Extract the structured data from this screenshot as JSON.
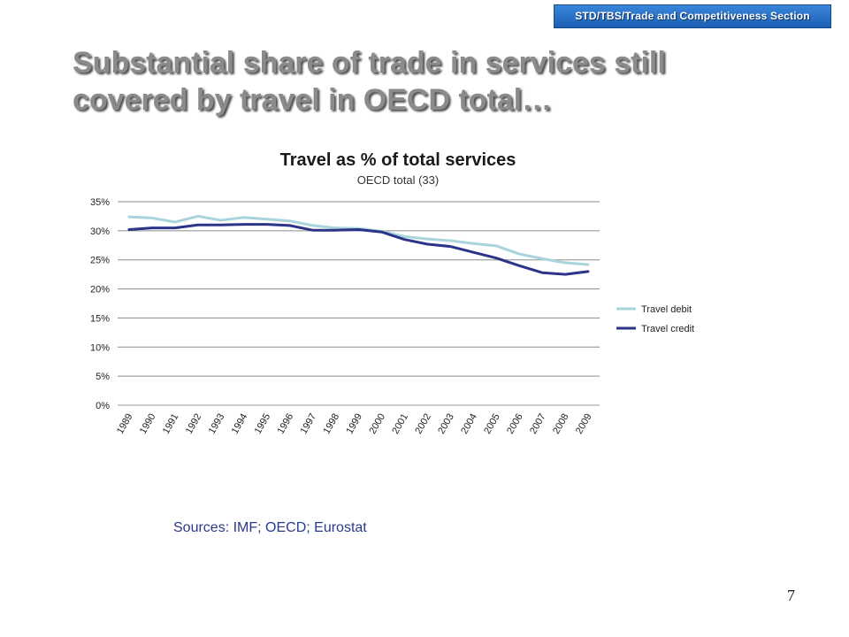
{
  "header": {
    "section_badge": "STD/TBS/Trade and Competitiveness Section"
  },
  "slide": {
    "title": "Substantial share of trade in services still covered by travel in OECD total…",
    "sources": "Sources: IMF; OECD; Eurostat",
    "page_number": "7"
  },
  "chart_data": {
    "type": "line",
    "title": "Travel as % of total services",
    "subtitle": "OECD total (33)",
    "xlabel": "",
    "ylabel": "",
    "x": [
      "1989",
      "1990",
      "1991",
      "1992",
      "1993",
      "1994",
      "1995",
      "1996",
      "1997",
      "1998",
      "1999",
      "2000",
      "2001",
      "2002",
      "2003",
      "2004",
      "2005",
      "2006",
      "2007",
      "2008",
      "2009"
    ],
    "ylim": [
      0,
      35
    ],
    "yticks": [
      0,
      5,
      10,
      15,
      20,
      25,
      30,
      35
    ],
    "ytick_labels": [
      "0%",
      "5%",
      "10%",
      "15%",
      "20%",
      "25%",
      "30%",
      "35%"
    ],
    "grid": true,
    "legend": "right",
    "series": [
      {
        "name": "Travel debit",
        "color": "#a9d4dc",
        "values": [
          32.4,
          32.2,
          31.5,
          32.5,
          31.8,
          32.3,
          32.0,
          31.7,
          30.9,
          30.5,
          30.4,
          29.9,
          29.0,
          28.6,
          28.3,
          27.8,
          27.4,
          26.0,
          25.2,
          24.5,
          24.2
        ]
      },
      {
        "name": "Travel credit",
        "color": "#2b3488",
        "values": [
          30.2,
          30.5,
          30.5,
          31.0,
          31.0,
          31.1,
          31.1,
          30.9,
          30.1,
          30.1,
          30.2,
          29.8,
          28.5,
          27.7,
          27.3,
          26.3,
          25.3,
          24.0,
          22.8,
          22.5,
          23.0
        ]
      }
    ]
  }
}
